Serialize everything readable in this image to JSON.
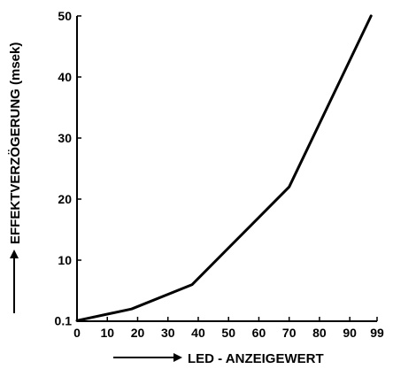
{
  "chart_data": {
    "type": "line",
    "title": "",
    "xlabel": "LED - ANZEIGEWERT",
    "ylabel": "EFFEKTVERZÖGERUNG (msek)",
    "x_tick_labels": [
      "0",
      "10",
      "20",
      "30",
      "40",
      "50",
      "60",
      "70",
      "80",
      "90",
      "99"
    ],
    "x_tick_values": [
      0,
      10,
      20,
      30,
      40,
      50,
      60,
      70,
      80,
      90,
      99
    ],
    "y_tick_labels": [
      "0.1",
      "10",
      "20",
      "30",
      "40",
      "50"
    ],
    "y_tick_values": [
      0.1,
      10,
      20,
      30,
      40,
      50
    ],
    "xlim": [
      0,
      99
    ],
    "ylim": [
      0,
      50
    ],
    "grid": false,
    "legend": "none",
    "line_color": "#000000",
    "series": [
      {
        "x": [
          0,
          18,
          38,
          70,
          97
        ],
        "y": [
          0.1,
          2,
          6,
          22,
          50
        ]
      }
    ]
  }
}
